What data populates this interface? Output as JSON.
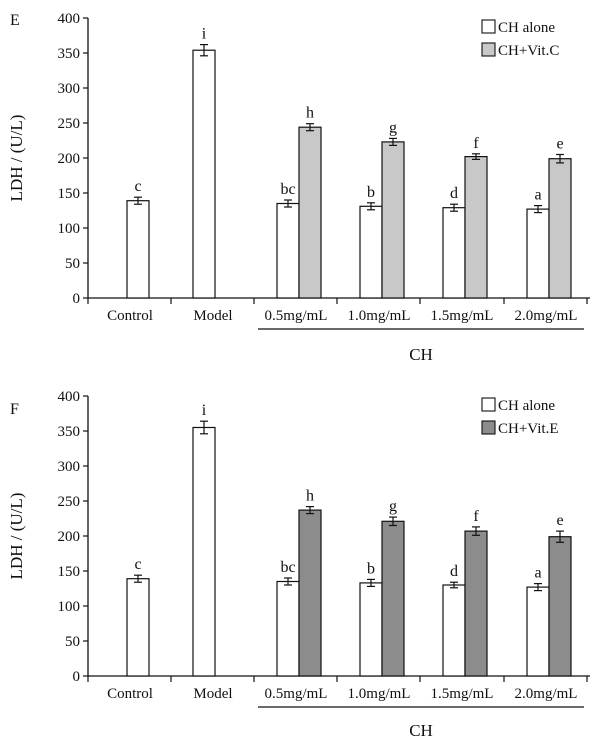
{
  "chart_data": [
    {
      "type": "bar",
      "panel_label": "E",
      "ylabel": "LDH / (U/L)",
      "ylim": [
        0,
        400
      ],
      "yticks": [
        0,
        50,
        100,
        150,
        200,
        250,
        300,
        350,
        400
      ],
      "categories": [
        "Control",
        "Model",
        "0.5mg/mL",
        "1.0mg/mL",
        "1.5mg/mL",
        "2.0mg/mL"
      ],
      "group_label": "CH",
      "legend_position": "top-right",
      "series": [
        {
          "name": "CH alone",
          "color": "#ffffff",
          "values": [
            139,
            354,
            135,
            131,
            129,
            127
          ],
          "errors": [
            5,
            8,
            5,
            5,
            5,
            5
          ],
          "letters": [
            "c",
            "i",
            "bc",
            "b",
            "d",
            "a"
          ]
        },
        {
          "name": "CH+Vit.C",
          "color": "#c8c8c8",
          "values": [
            null,
            null,
            244,
            223,
            202,
            199
          ],
          "errors": [
            null,
            null,
            5,
            5,
            4,
            6
          ],
          "letters": [
            null,
            null,
            "h",
            "g",
            "f",
            "e"
          ]
        }
      ]
    },
    {
      "type": "bar",
      "panel_label": "F",
      "ylabel": "LDH / (U/L)",
      "ylim": [
        0,
        400
      ],
      "yticks": [
        0,
        50,
        100,
        150,
        200,
        250,
        300,
        350,
        400
      ],
      "categories": [
        "Control",
        "Model",
        "0.5mg/mL",
        "1.0mg/mL",
        "1.5mg/mL",
        "2.0mg/mL"
      ],
      "group_label": "CH",
      "legend_position": "top-right",
      "series": [
        {
          "name": "CH alone",
          "color": "#ffffff",
          "values": [
            139,
            355,
            135,
            133,
            130,
            127
          ],
          "errors": [
            5,
            9,
            5,
            5,
            4,
            5
          ],
          "letters": [
            "c",
            "i",
            "bc",
            "b",
            "d",
            "a"
          ]
        },
        {
          "name": "CH+Vit.E",
          "color": "#8c8c8c",
          "values": [
            null,
            null,
            237,
            221,
            207,
            199
          ],
          "errors": [
            null,
            null,
            5,
            6,
            6,
            8
          ],
          "letters": [
            null,
            null,
            "h",
            "g",
            "f",
            "e"
          ]
        }
      ]
    }
  ]
}
